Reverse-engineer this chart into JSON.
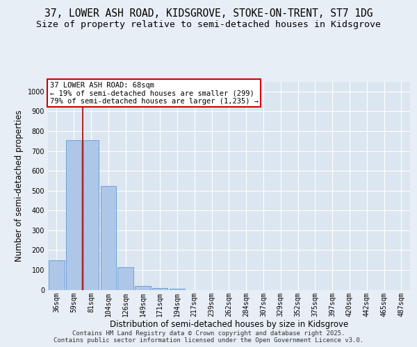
{
  "title_line1": "37, LOWER ASH ROAD, KIDSGROVE, STOKE-ON-TRENT, ST7 1DG",
  "title_line2": "Size of property relative to semi-detached houses in Kidsgrove",
  "xlabel": "Distribution of semi-detached houses by size in Kidsgrove",
  "ylabel": "Number of semi-detached properties",
  "categories": [
    "36sqm",
    "59sqm",
    "81sqm",
    "104sqm",
    "126sqm",
    "149sqm",
    "171sqm",
    "194sqm",
    "217sqm",
    "239sqm",
    "262sqm",
    "284sqm",
    "307sqm",
    "329sqm",
    "352sqm",
    "375sqm",
    "397sqm",
    "420sqm",
    "442sqm",
    "465sqm",
    "487sqm"
  ],
  "bar_values": [
    150,
    755,
    755,
    525,
    115,
    20,
    10,
    5,
    0,
    0,
    0,
    0,
    0,
    0,
    0,
    0,
    0,
    0,
    0,
    0,
    0
  ],
  "bar_color": "#aec6e8",
  "bar_edge_color": "#5b9bd5",
  "ylim": [
    0,
    1050
  ],
  "yticks": [
    0,
    100,
    200,
    300,
    400,
    500,
    600,
    700,
    800,
    900,
    1000
  ],
  "property_line_x": 1.5,
  "property_line_color": "#aa0000",
  "annotation_text": "37 LOWER ASH ROAD: 68sqm\n← 19% of semi-detached houses are smaller (299)\n79% of semi-detached houses are larger (1,235) →",
  "annotation_box_color": "#ffffff",
  "annotation_box_edge": "#cc0000",
  "footer_text": "Contains HM Land Registry data © Crown copyright and database right 2025.\nContains public sector information licensed under the Open Government Licence v3.0.",
  "background_color": "#e8eef5",
  "plot_bg_color": "#dce6f0",
  "grid_color": "#ffffff",
  "title_fontsize": 10.5,
  "subtitle_fontsize": 9.5,
  "tick_fontsize": 7,
  "label_fontsize": 8.5,
  "footer_fontsize": 6.5
}
